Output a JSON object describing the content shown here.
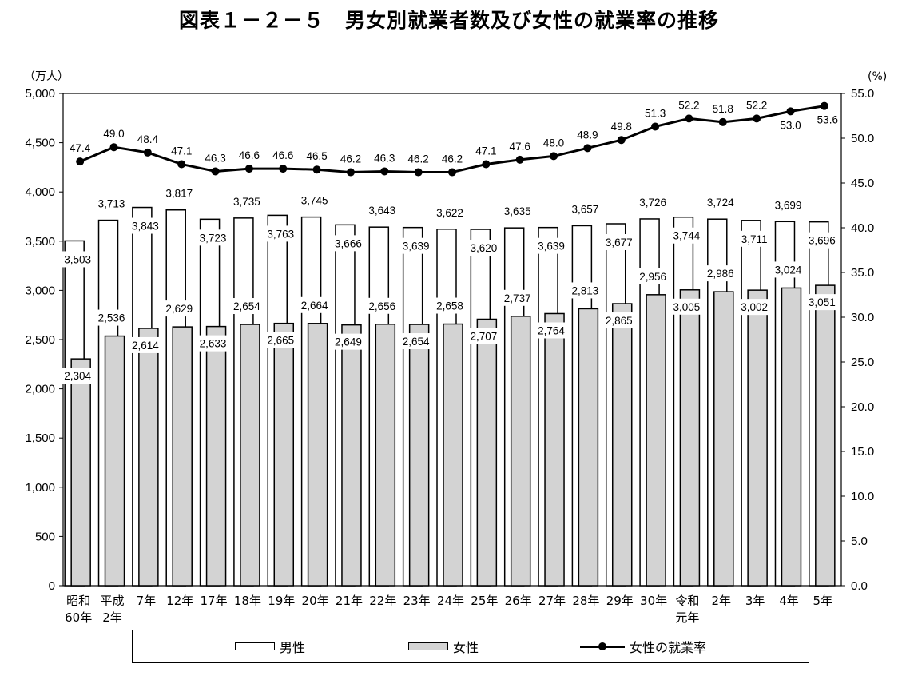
{
  "title": "図表１－２－５　男女別就業者数及び女性の就業率の推移",
  "legend": {
    "male": "男性",
    "female": "女性",
    "rate": "女性の就業率"
  },
  "chart_data": {
    "type": "bar",
    "title": "図表１－２－５　男女別就業者数及び女性の就業率の推移",
    "categories": [
      [
        "昭和",
        "60年"
      ],
      [
        "平成",
        "2年"
      ],
      [
        "7年"
      ],
      [
        "12年"
      ],
      [
        "17年"
      ],
      [
        "18年"
      ],
      [
        "19年"
      ],
      [
        "20年"
      ],
      [
        "21年"
      ],
      [
        "22年"
      ],
      [
        "23年"
      ],
      [
        "24年"
      ],
      [
        "25年"
      ],
      [
        "26年"
      ],
      [
        "27年"
      ],
      [
        "28年"
      ],
      [
        "29年"
      ],
      [
        "30年"
      ],
      [
        "令和",
        "元年"
      ],
      [
        "2年"
      ],
      [
        "3年"
      ],
      [
        "4年"
      ],
      [
        "5年"
      ]
    ],
    "y_left": {
      "unit": "（万人）",
      "ylim": [
        0,
        5000
      ],
      "ticks": [
        0,
        500,
        1000,
        1500,
        2000,
        2500,
        3000,
        3500,
        4000,
        4500,
        5000
      ]
    },
    "y_right": {
      "unit": "(%)",
      "ylim": [
        0,
        55
      ],
      "ticks": [
        0.0,
        5.0,
        10.0,
        15.0,
        20.0,
        25.0,
        30.0,
        35.0,
        40.0,
        45.0,
        50.0,
        55.0
      ]
    },
    "series": [
      {
        "name": "男性",
        "type": "bar",
        "axis": "left",
        "color": "#ffffff",
        "values": [
          3503,
          3713,
          3843,
          3817,
          3723,
          3735,
          3763,
          3745,
          3666,
          3643,
          3639,
          3622,
          3620,
          3635,
          3639,
          3657,
          3677,
          3726,
          3744,
          3724,
          3711,
          3699,
          3696
        ]
      },
      {
        "name": "女性",
        "type": "bar",
        "axis": "left",
        "color": "#d3d3d3",
        "values": [
          2304,
          2536,
          2614,
          2629,
          2633,
          2654,
          2665,
          2664,
          2649,
          2656,
          2654,
          2658,
          2707,
          2737,
          2764,
          2813,
          2865,
          2956,
          3005,
          2986,
          3002,
          3024,
          3051
        ]
      },
      {
        "name": "女性の就業率",
        "type": "line",
        "axis": "right",
        "color": "#000000",
        "values": [
          47.4,
          49.0,
          48.4,
          47.1,
          46.3,
          46.6,
          46.6,
          46.5,
          46.2,
          46.3,
          46.2,
          46.2,
          47.1,
          47.6,
          48.0,
          48.9,
          49.8,
          51.3,
          52.2,
          51.8,
          52.2,
          53.0,
          53.6
        ]
      }
    ],
    "grid": false,
    "legend_position": "bottom"
  }
}
